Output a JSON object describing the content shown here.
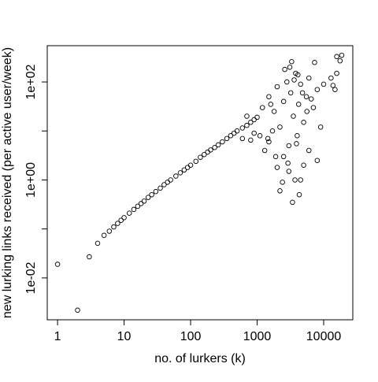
{
  "chart_data": {
    "type": "scatter",
    "xlabel": "no. of lurkers (k)",
    "ylabel": "new lurking links received (per active user/week)",
    "xlog": true,
    "ylog": true,
    "color": "#000000",
    "xlim": [
      0.7,
      27400
    ],
    "ylim": [
      0.0014,
      550
    ],
    "xticks": [
      1,
      10,
      100,
      1000,
      10000
    ],
    "yticks": [
      {
        "value": 0.01,
        "label": "1e-02"
      },
      {
        "value": 1,
        "label": "1e+00"
      },
      {
        "value": 100,
        "label": "1e+02"
      }
    ],
    "yminorticks": [
      0.1,
      10
    ],
    "x": [
      1,
      2,
      3,
      4,
      5,
      6,
      7,
      8,
      9,
      10,
      12,
      14,
      16,
      18,
      20,
      23,
      26,
      30,
      35,
      40,
      45,
      50,
      60,
      70,
      80,
      90,
      100,
      120,
      140,
      160,
      180,
      200,
      230,
      260,
      300,
      350,
      400,
      450,
      500,
      600,
      700,
      800,
      900,
      1000,
      600,
      800,
      700,
      900,
      1100,
      1300,
      1450,
      1500,
      1700,
      1900,
      1200,
      1500,
      1800,
      2000,
      2200,
      2500,
      2800,
      3000,
      3200,
      3500,
      3800,
      4000,
      4200,
      4500,
      5000,
      5500,
      6000,
      7000,
      8000,
      2200,
      4300,
      3700,
      4500,
      3000,
      5000,
      2500,
      8000,
      6000,
      3300,
      7300,
      10000,
      15700,
      17600,
      18700,
      14800,
      13800,
      15700,
      12900,
      2600,
      3100,
      3600,
      4100,
      4800,
      5600,
      6500,
      2000,
      2400,
      2900,
      3400,
      3900,
      1600,
      9000
    ],
    "y": [
      0.019,
      0.0022,
      0.027,
      0.051,
      0.074,
      0.09,
      0.11,
      0.13,
      0.15,
      0.17,
      0.21,
      0.25,
      0.29,
      0.33,
      0.37,
      0.44,
      0.5,
      0.58,
      0.68,
      0.8,
      0.9,
      1.0,
      1.2,
      1.4,
      1.6,
      1.8,
      2.0,
      2.4,
      2.9,
      3.3,
      3.7,
      4.1,
      4.6,
      5.2,
      6.0,
      7.0,
      8.0,
      9.0,
      10,
      11.5,
      13,
      15,
      17,
      19,
      7,
      6.5,
      20,
      9,
      8,
      4,
      7,
      6,
      10,
      3,
      30,
      50,
      25,
      80,
      12,
      40,
      100,
      5,
      60,
      20,
      150,
      8,
      35,
      90,
      15,
      50,
      120,
      30,
      70,
      0.6,
      0.5,
      1.0,
      1.0,
      1.5,
      2,
      3,
      2.5,
      4,
      260,
      250,
      90,
      330,
      270,
      350,
      70,
      85,
      150,
      120,
      180,
      200,
      110,
      140,
      60,
      25,
      45,
      1.8,
      0.9,
      2.2,
      0.35,
      5.5,
      35,
      12
    ]
  }
}
